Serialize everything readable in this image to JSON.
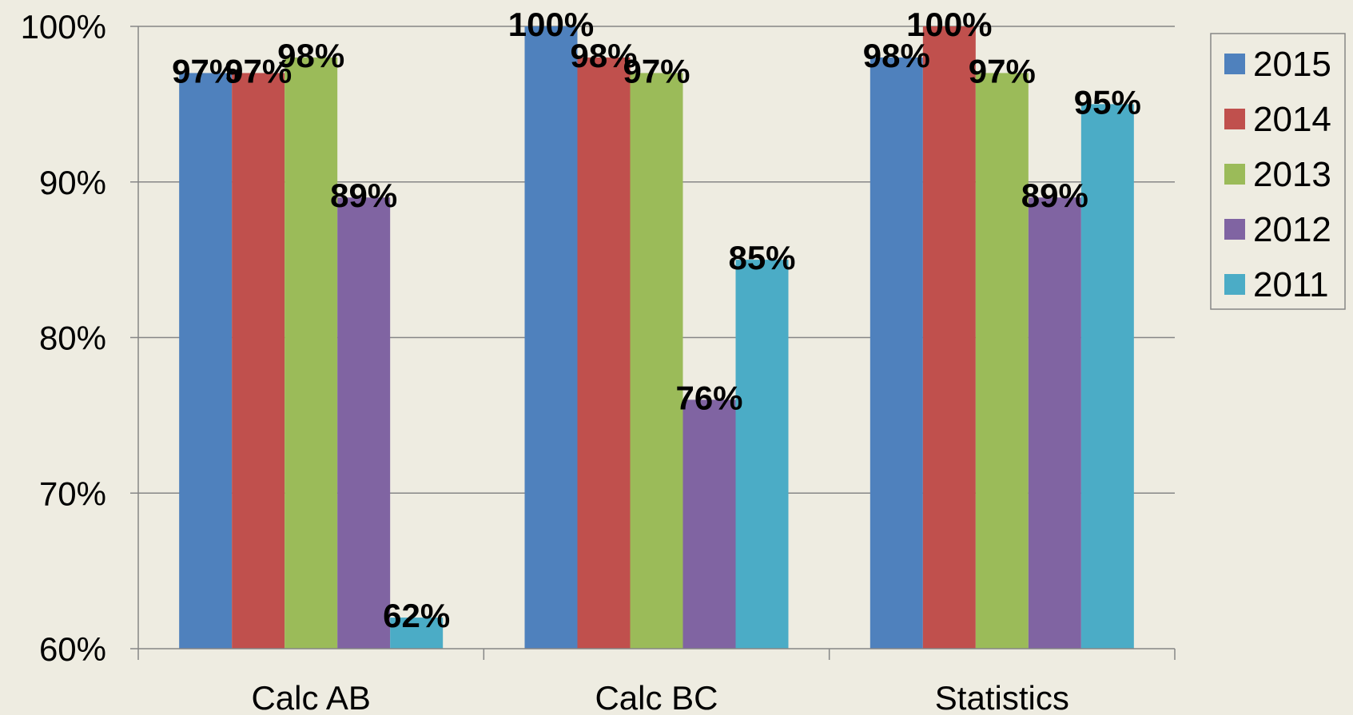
{
  "chart_data": {
    "type": "bar",
    "title": "",
    "xlabel": "",
    "ylabel": "",
    "categories": [
      "Calc AB",
      "Calc BC",
      "Statistics"
    ],
    "series": [
      {
        "name": "2015",
        "color": "#4F81BD",
        "values": [
          97,
          100,
          98
        ],
        "labels": [
          "97%",
          "100%",
          "98%"
        ]
      },
      {
        "name": "2014",
        "color": "#C0504D",
        "values": [
          97,
          98,
          100
        ],
        "labels": [
          "97%",
          "98%",
          "100%"
        ]
      },
      {
        "name": "2013",
        "color": "#9BBB59",
        "values": [
          98,
          97,
          97
        ],
        "labels": [
          "98%",
          "97%",
          "97%"
        ]
      },
      {
        "name": "2012",
        "color": "#8064A2",
        "values": [
          89,
          76,
          89
        ],
        "labels": [
          "89%",
          "76%",
          "89%"
        ]
      },
      {
        "name": "2011",
        "color": "#4BACC6",
        "values": [
          62,
          85,
          95
        ],
        "labels": [
          "62%",
          "85%",
          "95%"
        ]
      }
    ],
    "ylim": [
      60,
      100
    ],
    "yticks": [
      60,
      70,
      80,
      90,
      100
    ],
    "ytick_labels": [
      "60%",
      "70%",
      "80%",
      "90%",
      "100%"
    ],
    "grid": true,
    "legend": "right",
    "background": "#EEECE1"
  }
}
